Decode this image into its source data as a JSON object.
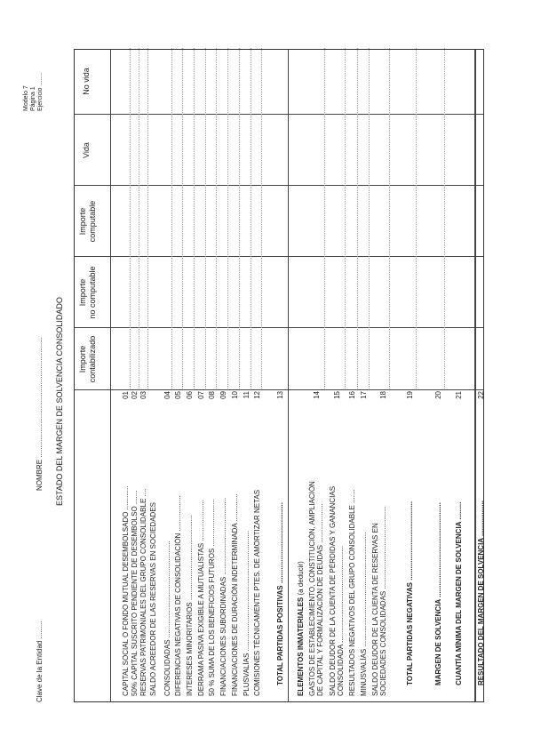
{
  "header": {
    "clave_label": "Clave de la Entidad",
    "clave_value": ".........",
    "nombre_label": "NOMBRE",
    "nombre_value": ".............................................................",
    "modelo": "Modelo 7",
    "pagina": "Página 1",
    "ejercicio": "Ejercicio ........",
    "title": "ESTADO DEL MARGEN DE SOLVENCIA CONSOLIDADO"
  },
  "columns": [
    {
      "line1": "Importe",
      "line2": "contabilizado"
    },
    {
      "line1": "Importe",
      "line2": "no computable"
    },
    {
      "line1": "Importe",
      "line2": "computable"
    },
    {
      "line1": "Vida",
      "line2": ""
    },
    {
      "line1": "No vida",
      "line2": ""
    }
  ],
  "rows": [
    {
      "label": "CAPITAL SOCIAL O FONDO MUTUAL DESEMBOLSADO ............",
      "num": "01"
    },
    {
      "label": "50% CAPITAL SUSCRITO PENDIENTE DE DESEMBOLSO .......",
      "num": "02"
    },
    {
      "label": "RESERVAS PATRIMONIALES DEL GRUPO CONSOLIDABLE ....",
      "num": "03"
    },
    {
      "label": "SALDO ACREEDOR DE LAS RESERVAS EN SOCIEDADES",
      "num": ""
    },
    {
      "label": "CONSOLIDADAS .................................................",
      "num": "04"
    },
    {
      "label": "DIFERENCIAS NEGATIVAS DE CONSOLIDACIÓN ..................",
      "num": "05"
    },
    {
      "label": "INTERESES MINORITARIOS ...........................................",
      "num": "06"
    },
    {
      "label": "DERRAMA PASIVA EXIGIBLE A MUTUALISTAS .....................",
      "num": "07"
    },
    {
      "label": "50 % SUMA DE LOS BENEFICIOS FUTUROS ........................",
      "num": "08"
    },
    {
      "label": "FINANCIACIONES SUBORDINADAS .......................................",
      "num": "09"
    },
    {
      "label": "FINANCIACIONES DE DURACIÓN INDETERMINADA ..............",
      "num": "10"
    },
    {
      "label": "PLUSVALÍAS .............................................................",
      "num": "11"
    },
    {
      "label": "COMISIONES TÉCNICAMENTE PTES. DE AMORTIZAR NETAS",
      "num": "12"
    },
    {
      "label": "TOTAL PARTIDAS POSITIVAS .........................................",
      "num": "13"
    },
    {
      "label": "ELEMENTOS INMATERIALES",
      "suffix": "(a deducir)",
      "num": ""
    },
    {
      "label": "GASTOS DE ESTABLECIMIENTO, CONSTITUCIÓN, AMPLIACIÓN",
      "label2": "DE CAPITAL Y FORMALIZACIÓN DE DEUDAS ....................",
      "num": "14"
    },
    {
      "label": "SALDO DEUDOR DE LA CUENTA DE PÉRDIDAS Y GANANCIAS",
      "label2": "CONSOLIDADA .................................................",
      "num": "15"
    },
    {
      "label": "RESULTADOS NEGATIVOS DEL GRUPO CONSOLIDABLE .......",
      "num": "16"
    },
    {
      "label": "MINUSVALÍAS ..........................................................",
      "num": "17"
    },
    {
      "label": "SALDO DEUDOR DE LA CUENTA DE RESERVAS EN",
      "label2": "SOCIEDADES CONSOLIDADAS ..........................................",
      "num": "18"
    },
    {
      "label": "TOTAL PARTIDAS NEGATIVAS ........................................",
      "num": "19"
    },
    {
      "label": "MARGEN DE SOLVENCIA ................................................",
      "num": "20"
    },
    {
      "label": "CUANTÍA MÍNIMA DEL MARGEN DE SOLVENCIA .........",
      "num": "21"
    },
    {
      "label": "RESULTADO DEL MARGEN DE SOLVENCIA ..................",
      "num": "22"
    }
  ]
}
